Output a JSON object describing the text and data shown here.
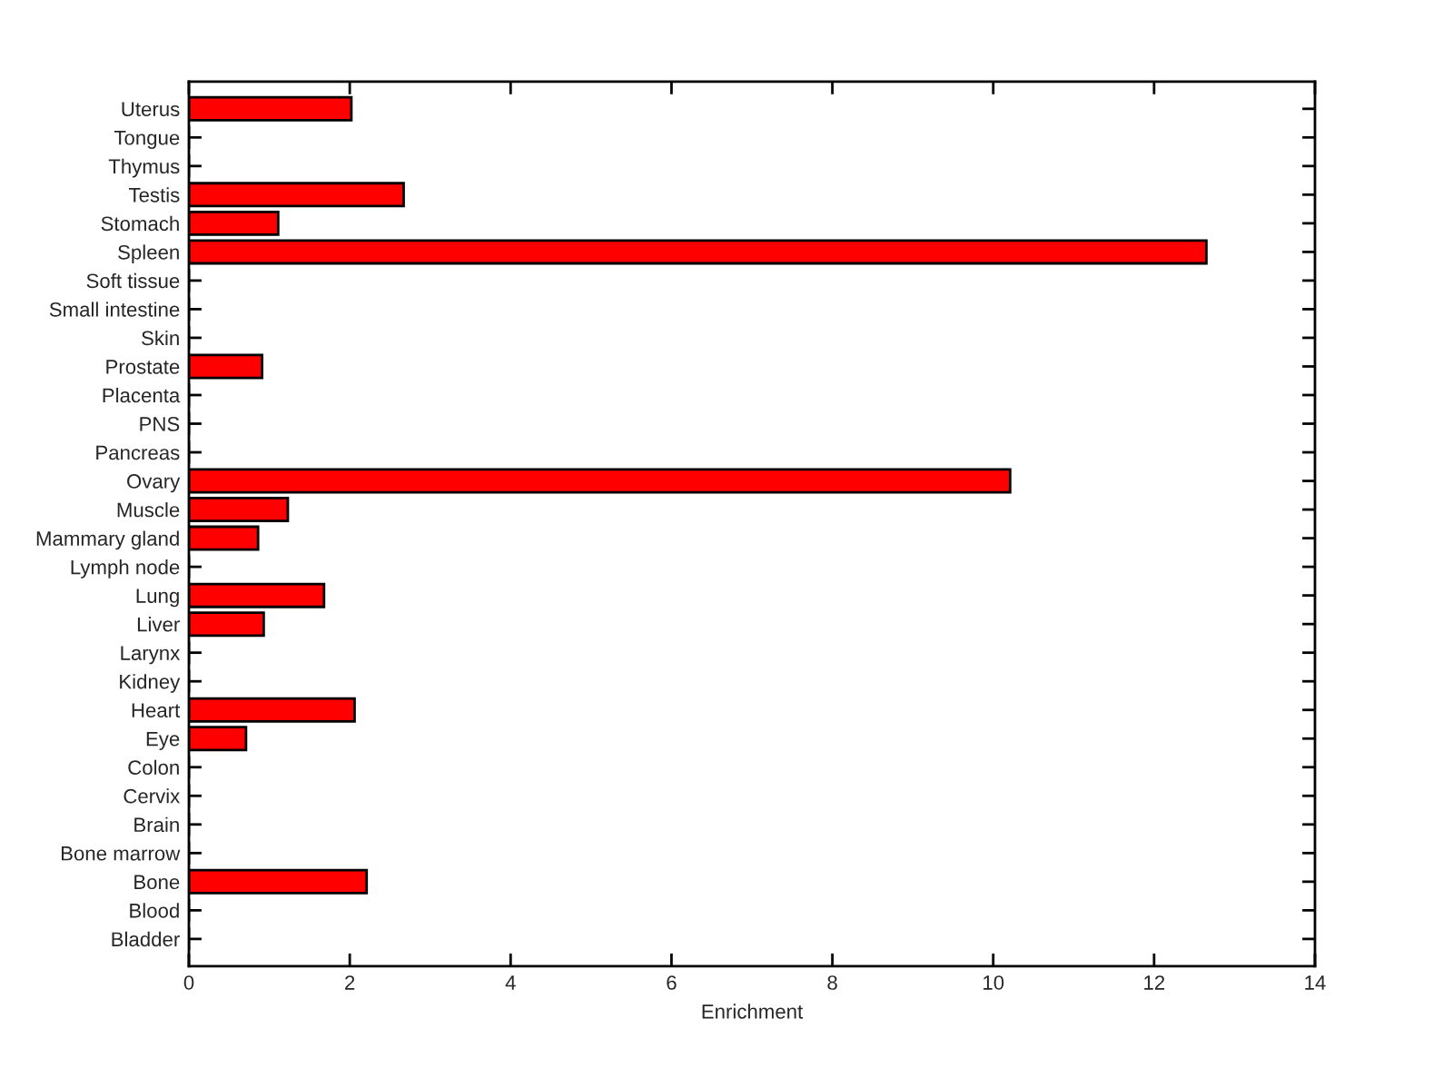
{
  "chart_data": {
    "type": "bar",
    "orientation": "horizontal",
    "xlabel": "Enrichment",
    "categories": [
      "Uterus",
      "Tongue",
      "Thymus",
      "Testis",
      "Stomach",
      "Spleen",
      "Soft tissue",
      "Small intestine",
      "Skin",
      "Prostate",
      "Placenta",
      "PNS",
      "Pancreas",
      "Ovary",
      "Muscle",
      "Mammary gland",
      "Lymph node",
      "Lung",
      "Liver",
      "Larynx",
      "Kidney",
      "Heart",
      "Eye",
      "Colon",
      "Cervix",
      "Brain",
      "Bone marrow",
      "Bone",
      "Blood",
      "Bladder"
    ],
    "values": [
      2.02,
      0,
      0,
      2.67,
      1.11,
      12.65,
      0,
      0,
      0,
      0.91,
      0,
      0,
      0,
      10.21,
      1.23,
      0.86,
      0,
      1.68,
      0.93,
      0,
      0,
      2.06,
      0.71,
      0,
      0,
      0,
      0,
      2.21,
      0,
      0
    ],
    "color": "#ff0000",
    "xlim": [
      0,
      14
    ],
    "xticks": [
      0,
      2,
      4,
      6,
      8,
      10,
      12,
      14
    ],
    "grid": false
  }
}
